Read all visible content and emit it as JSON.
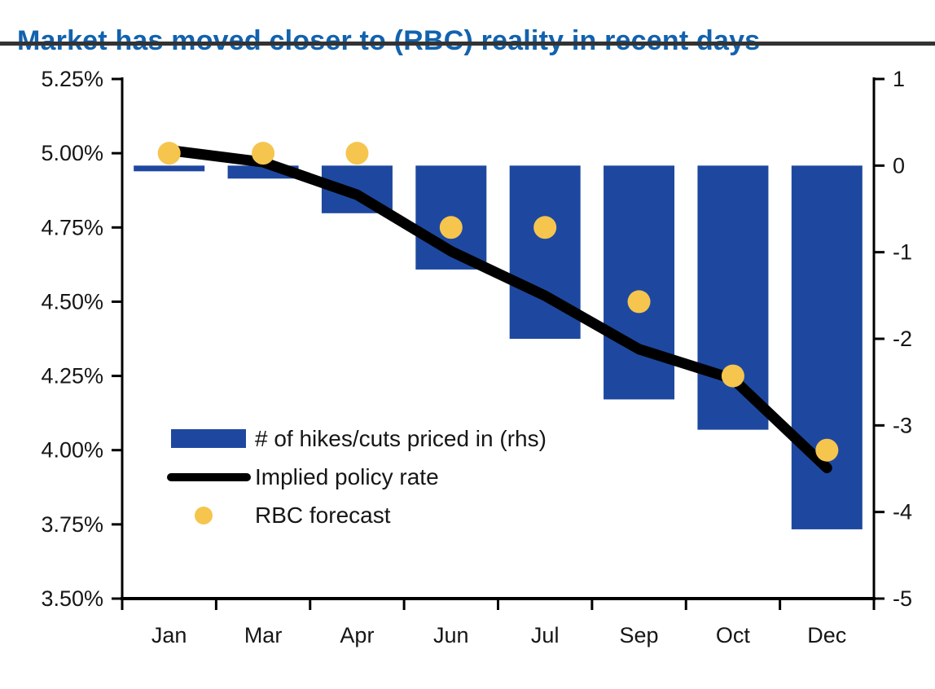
{
  "title": "Market has moved closer to (RBC) reality in recent days",
  "colors": {
    "title": "#1262AE",
    "title_rule": "#333333",
    "bar": "#1E48A0",
    "line": "#000000",
    "dot": "#F6C54E",
    "axis": "#000000",
    "text": "#161616",
    "background": "#FFFFFF"
  },
  "chart_data": {
    "type": "bar",
    "subtype": "combo-bar-line-scatter",
    "title": "Market has moved closer to (RBC) reality in recent days",
    "categories": [
      "Jan",
      "Mar",
      "Apr",
      "Jun",
      "Jul",
      "Sep",
      "Oct",
      "Dec"
    ],
    "series": [
      {
        "name": "# of hikes/cuts priced in (rhs)",
        "type": "bar",
        "axis": "right",
        "values": [
          -0.05,
          -0.15,
          -0.55,
          -1.2,
          -2.0,
          -2.7,
          -3.05,
          -4.2
        ]
      },
      {
        "name": "Implied policy rate",
        "type": "line",
        "axis": "left",
        "values": [
          5.01,
          4.97,
          4.86,
          4.67,
          4.52,
          4.34,
          4.24,
          3.94
        ]
      },
      {
        "name": "RBC forecast",
        "type": "scatter",
        "axis": "left",
        "values": [
          5.0,
          5.0,
          5.0,
          4.75,
          4.75,
          4.5,
          4.25,
          4.0
        ]
      }
    ],
    "left_axis": {
      "min": 3.5,
      "max": 5.25,
      "step": 0.25,
      "tick_labels": [
        "5.25%",
        "5.00%",
        "4.75%",
        "4.50%",
        "4.25%",
        "4.00%",
        "3.75%",
        "3.50%"
      ]
    },
    "right_axis": {
      "min": -5,
      "max": 1,
      "step": 1,
      "tick_labels": [
        "1",
        "0",
        "-1",
        "-2",
        "-3",
        "-4",
        "-5"
      ]
    },
    "grid": false,
    "legend_position": "inside-lower-left"
  },
  "legend": {
    "items": [
      {
        "label": "# of hikes/cuts priced in (rhs)",
        "swatch": "bar"
      },
      {
        "label": "Implied policy rate",
        "swatch": "line"
      },
      {
        "label": "RBC forecast",
        "swatch": "dot"
      }
    ]
  }
}
